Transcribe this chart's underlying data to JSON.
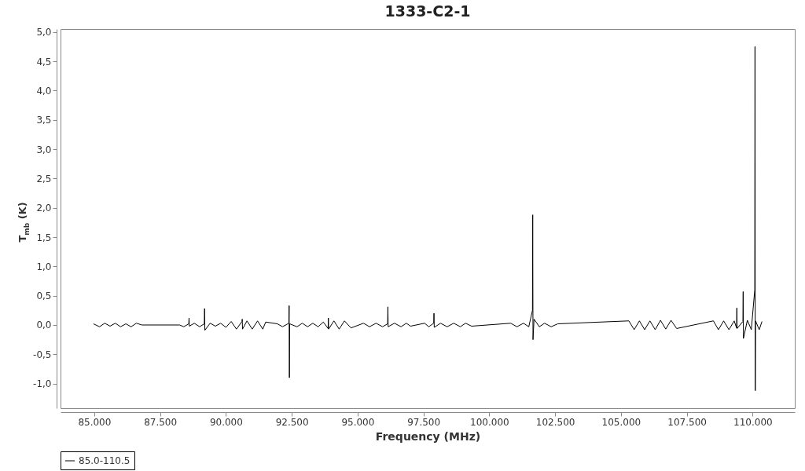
{
  "chart_data": {
    "type": "line",
    "title": "1333-C2-1",
    "xlabel": "Frequency (MHz)",
    "ylabel": "T$_{mb}$ (K)",
    "xlim": [
      83720,
      111600
    ],
    "ylim": [
      -1.42,
      5.05
    ],
    "xticks": [
      {
        "value": 85000,
        "label": "85.000"
      },
      {
        "value": 87500,
        "label": "87.500"
      },
      {
        "value": 90000,
        "label": "90.000"
      },
      {
        "value": 92500,
        "label": "92.500"
      },
      {
        "value": 95000,
        "label": "95.000"
      },
      {
        "value": 97500,
        "label": "97.500"
      },
      {
        "value": 100000,
        "label": "100.000"
      },
      {
        "value": 102500,
        "label": "102.500"
      },
      {
        "value": 105000,
        "label": "105.000"
      },
      {
        "value": 107500,
        "label": "107.500"
      },
      {
        "value": 110000,
        "label": "110.000"
      }
    ],
    "yticks": [
      {
        "value": -1.0,
        "label": "-1,0"
      },
      {
        "value": -0.5,
        "label": "-0,5"
      },
      {
        "value": 0,
        "label": "0,0"
      },
      {
        "value": 0.5,
        "label": "0,5"
      },
      {
        "value": 1.0,
        "label": "1,0"
      },
      {
        "value": 1.5,
        "label": "1,5"
      },
      {
        "value": 2.0,
        "label": "2,0"
      },
      {
        "value": 2.5,
        "label": "2,5"
      },
      {
        "value": 3.0,
        "label": "3,0"
      },
      {
        "value": 3.5,
        "label": "3,5"
      },
      {
        "value": 4.0,
        "label": "4,0"
      },
      {
        "value": 4.5,
        "label": "4,5"
      },
      {
        "value": 5.0,
        "label": "5,0"
      }
    ],
    "grid": false,
    "legend": "bottom",
    "line_style": "solid",
    "marker": "none",
    "series": [
      {
        "name": "85.0-110.5",
        "color": "#000000",
        "x": [
          84970,
          85200,
          85400,
          85600,
          85800,
          86000,
          86200,
          86400,
          86600,
          86813,
          88240,
          88400,
          88590,
          88600,
          88610,
          88800,
          89000,
          89180,
          89190,
          89200,
          89400,
          89600,
          89800,
          90000,
          90200,
          90400,
          90610,
          90620,
          90630,
          90800,
          91000,
          91200,
          91400,
          91510,
          91956,
          92150,
          92390,
          92400,
          92410,
          92420,
          92700,
          92900,
          93100,
          93300,
          93500,
          93700,
          93880,
          93890,
          93900,
          94100,
          94300,
          94500,
          94750,
          95226,
          95450,
          95700,
          95950,
          96140,
          96150,
          96160,
          96400,
          96650,
          96850,
          97010,
          97545,
          97700,
          97890,
          97900,
          97910,
          98150,
          98400,
          98650,
          98900,
          99100,
          99330,
          100815,
          101050,
          101300,
          101500,
          101640,
          101650,
          101660,
          101700,
          101900,
          102100,
          102350,
          102600,
          105300,
          105500,
          105700,
          105900,
          106100,
          106300,
          106500,
          106700,
          106900,
          107115,
          108510,
          108700,
          108900,
          109100,
          109300,
          109390,
          109400,
          109410,
          109630,
          109640,
          109650,
          109800,
          109950,
          110080,
          110090,
          110100,
          110110,
          110250,
          110355
        ],
        "values": [
          0.02,
          -0.03,
          0.03,
          -0.02,
          0.03,
          -0.03,
          0.02,
          -0.03,
          0.03,
          0.0,
          0.0,
          -0.03,
          0.02,
          0.12,
          -0.02,
          0.03,
          -0.03,
          0.02,
          0.28,
          -0.09,
          0.03,
          -0.02,
          0.03,
          -0.04,
          0.06,
          -0.07,
          0.06,
          0.1,
          -0.07,
          0.07,
          -0.07,
          0.07,
          -0.07,
          0.05,
          0.02,
          -0.03,
          0.03,
          0.33,
          -0.9,
          0.02,
          -0.03,
          0.03,
          -0.03,
          0.03,
          -0.03,
          0.05,
          -0.06,
          0.12,
          -0.07,
          0.07,
          -0.07,
          0.07,
          -0.05,
          0.03,
          -0.03,
          0.03,
          -0.03,
          0.02,
          0.31,
          -0.03,
          0.03,
          -0.03,
          0.03,
          -0.02,
          0.03,
          -0.03,
          0.03,
          0.2,
          -0.04,
          0.03,
          -0.03,
          0.03,
          -0.03,
          0.03,
          -0.02,
          0.03,
          -0.03,
          0.03,
          -0.03,
          0.25,
          1.88,
          -0.25,
          0.1,
          -0.03,
          0.03,
          -0.03,
          0.02,
          0.07,
          -0.08,
          0.07,
          -0.08,
          0.07,
          -0.08,
          0.08,
          -0.07,
          0.08,
          -0.06,
          0.07,
          -0.08,
          0.07,
          -0.08,
          0.07,
          -0.05,
          0.29,
          -0.06,
          0.06,
          0.57,
          -0.23,
          0.08,
          -0.08,
          0.6,
          4.75,
          -1.12,
          0.07,
          -0.08,
          0.06
        ]
      }
    ]
  }
}
